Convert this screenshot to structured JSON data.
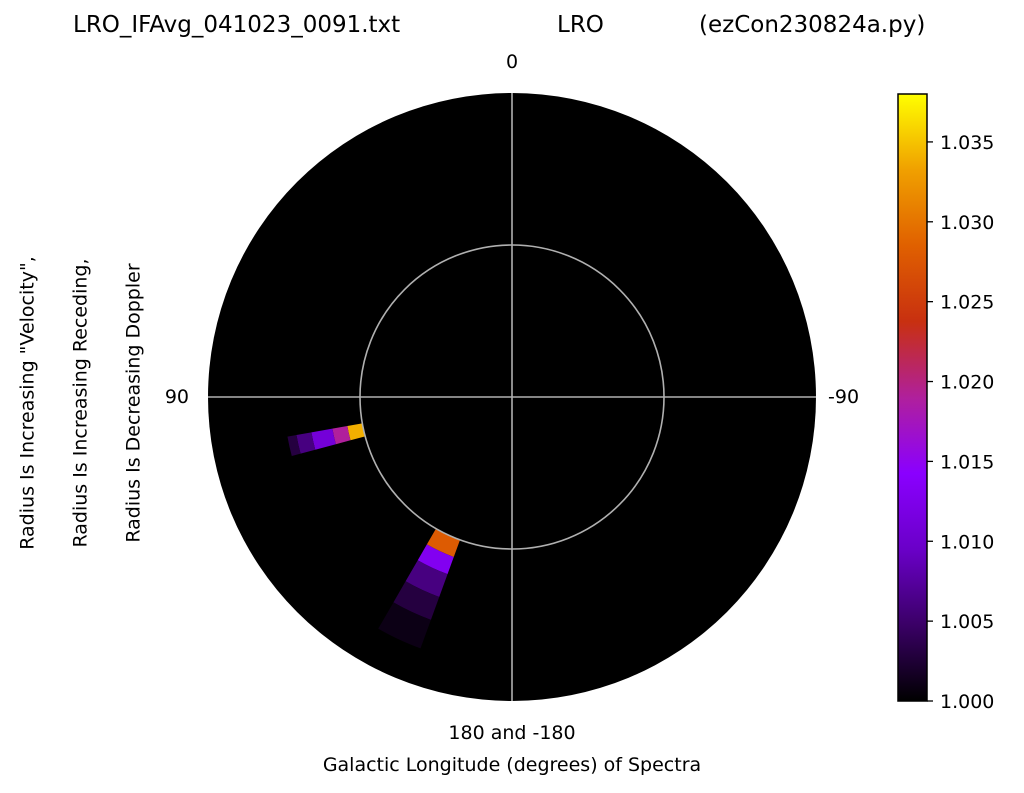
{
  "title": {
    "left": "LRO_IFAvg_041023_0091.txt",
    "center": "LRO",
    "right": "(ezCon230824a.py)"
  },
  "ylabel_lines": [
    "Radius Is Increasing \"Velocity\",",
    "Radius Is Increasing Receding,",
    "Radius Is Decreasing Doppler"
  ],
  "xlabel": "Galactic Longitude (degrees) of Spectra",
  "polar_labels": {
    "top": "0",
    "left": "90",
    "right": "-90",
    "bottom": "180 and -180"
  },
  "colorbar": {
    "min": 1.0,
    "max": 1.038,
    "ticks": [
      "1.000",
      "1.005",
      "1.010",
      "1.015",
      "1.020",
      "1.025",
      "1.030",
      "1.035"
    ],
    "colormap": "gnuplot",
    "colors": [
      "#000000",
      "#3a0066",
      "#6a00c8",
      "#8a00ff",
      "#b0209c",
      "#c83010",
      "#e06000",
      "#f0a000",
      "#ffff00"
    ]
  },
  "chart_data": {
    "type": "heatmap",
    "projection": "polar",
    "theta_zero": "top",
    "theta_direction": "counterclockwise",
    "theta_labels": {
      "0": "0",
      "90": "90",
      "-90": "-90",
      "180": "180 and -180"
    },
    "xlabel": "Galactic Longitude (degrees) of Spectra",
    "grid": true,
    "value_range": [
      1.0,
      1.038
    ],
    "patches": [
      {
        "longitude_range_deg": [
          100,
          105
        ],
        "rows": [
          {
            "radius_range": [
              0.5,
              0.55
            ],
            "value": 1.034
          },
          {
            "radius_range": [
              0.55,
              0.6
            ],
            "value": 1.019
          },
          {
            "radius_range": [
              0.6,
              0.67
            ],
            "value": 1.011
          },
          {
            "radius_range": [
              0.67,
              0.72
            ],
            "value": 1.006
          },
          {
            "radius_range": [
              0.72,
              0.75
            ],
            "value": 1.003
          }
        ]
      },
      {
        "longitude_range_deg": [
          150,
          160
        ],
        "rows": [
          {
            "radius_range": [
              0.5,
              0.56
            ],
            "value": 1.028
          },
          {
            "radius_range": [
              0.56,
              0.62
            ],
            "value": 1.013
          },
          {
            "radius_range": [
              0.62,
              0.7
            ],
            "value": 1.006
          },
          {
            "radius_range": [
              0.7,
              0.78
            ],
            "value": 1.003
          },
          {
            "radius_range": [
              0.78,
              0.88
            ],
            "value": 1.001
          }
        ]
      }
    ]
  }
}
